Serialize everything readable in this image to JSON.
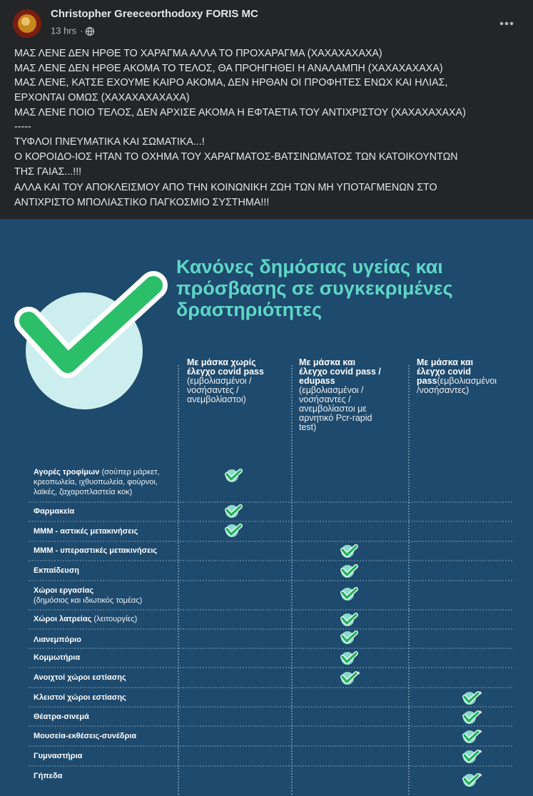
{
  "post": {
    "author": "Christopher Greeceorthodoxy FORIS MC",
    "time": "13 hrs",
    "text": [
      "ΜΑΣ ΛΕΝΕ ΔΕΝ ΗΡΘΕ ΤΟ ΧΑΡΑΓΜΑ ΑΛΛΑ ΤΟ ΠΡΟΧΑΡΑΓΜΑ (ΧΑΧΑΧΑΧΑΧΑ)",
      "ΜΑΣ ΛΕΝΕ ΔΕΝ ΗΡΘΕ ΑΚΟΜΑ ΤΟ ΤΕΛΟΣ, ΘΑ ΠΡΟΗΓΗΘΕΙ Η ΑΝΑΛΑΜΠΗ (ΧΑΧΑΧΑΧΑΧΑ)",
      "ΜΑΣ ΛΕΝΕ, ΚΑΤΣΕ ΕΧΟΥΜΕ ΚΑΙΡΟ ΑΚΟΜΑ, ΔΕΝ ΗΡΘΑΝ ΟΙ ΠΡΟΦΗΤΕΣ ΕΝΩΧ ΚΑΙ ΗΛΙΑΣ,",
      "ΕΡΧΟΝΤΑΙ ΟΜΩΣ (ΧΑΧΑΧΑΧΑΧΑΧΑ)",
      "ΜΑΣ ΛΕΝΕ ΠΟΙΟ ΤΕΛΟΣ, ΔΕΝ ΑΡΧΙΣΕ ΑΚΟΜΑ Η ΕΦΤΑΕΤΙΑ ΤΟΥ ΑΝΤΙΧΡΙΣΤΟΥ (ΧΑΧΑΧΑΧΑΧΑ)",
      "-----",
      "ΤΥΦΛΟΙ ΠΝΕΥΜΑΤΙΚΑ ΚΑΙ ΣΩΜΑΤΙΚΑ...!",
      "Ο ΚΟΡΟΙΔΟ-ΙΟΣ ΗΤΑΝ ΤΟ ΟΧΗΜΑ ΤΟΥ ΧΑΡΑΓΜΑΤΟΣ-ΒΑΤΣΙΝΩΜΑΤΟΣ ΤΩΝ ΚΑΤΟΙΚΟΥΝΤΩΝ",
      "ΤΗΣ ΓΑΙΑΣ...!!!",
      "ΑΛΛΑ ΚΑΙ ΤΟΥ ΑΠΟΚΛΕΙΣΜΟΥ ΑΠΟ ΤΗΝ ΚΟΙΝΩΝΙΚΗ ΖΩΗ ΤΩΝ ΜΗ ΥΠΟΤΑΓΜΕΝΩΝ ΣΤΟ",
      "ΑΝΤΙΧΡΙΣΤΟ ΜΠΟΛΙΑΣΤΙΚΟ ΠΑΓΚΟΣΜΙΟ ΣΥΣΤΗΜΑ!!!"
    ]
  },
  "infographic": {
    "title": [
      "Κανόνες δημόσιας υγείας και",
      "πρόσβασης σε συγκεκριμένες",
      "δραστηριότητες"
    ],
    "columns": [
      {
        "lines": [
          {
            "bold": "Με μάσκα χωρίς"
          },
          {
            "bold": "έλεγχο covid pass"
          },
          {
            "regular": "(εμβολιασμένοι /"
          },
          {
            "regular": "νοσήσαντες /"
          },
          {
            "regular": "ανεμβολίαστοι)"
          }
        ]
      },
      {
        "lines": [
          {
            "bold": "Με μάσκα και"
          },
          {
            "bold": "έλεγχο covid pass /"
          },
          {
            "bold": "edupass"
          },
          {
            "regular": "(εμβολιασμένοι /"
          },
          {
            "regular": "νοσήσαντες /"
          },
          {
            "regular": "ανεμβολίαστοι με"
          },
          {
            "regular": "αρνητικό Pcr-rapid"
          },
          {
            "regular": "test)"
          }
        ]
      },
      {
        "lines": [
          {
            "bold": "Με μάσκα και"
          },
          {
            "bold": "έλεγχο covid"
          },
          {
            "bold": "pass",
            "regular": "(εμβολιασμένοι"
          },
          {
            "regular": "/νοσήσαντες)"
          }
        ]
      }
    ],
    "rows": [
      {
        "lines": [
          {
            "bold": "Αγορές τροφίμων",
            "regular": " (σούπερ μάρκετ,"
          },
          {
            "regular": "κρεοπωλεία, ιχθυοπωλεία, φούρνοι,"
          },
          {
            "regular": "λαϊκές, ζαχαροπλαστεία κοκ)"
          }
        ],
        "column": 0
      },
      {
        "lines": [
          {
            "bold": "Φαρμακεία"
          }
        ],
        "column": 0
      },
      {
        "lines": [
          {
            "bold": "ΜΜΜ - αστικές μετακινήσεις"
          }
        ],
        "column": 0
      },
      {
        "lines": [
          {
            "bold": "ΜΜΜ - υπεραστικές μετακινήσεις"
          }
        ],
        "column": 1
      },
      {
        "lines": [
          {
            "bold": "Εκπαίδευση"
          }
        ],
        "column": 1
      },
      {
        "lines": [
          {
            "bold": "Χώροι εργασίας"
          },
          {
            "regular": "(δημόσιος και ιδιωτικός τομέας)"
          }
        ],
        "column": 1
      },
      {
        "lines": [
          {
            "bold": "Χώροι λατρείας",
            "regular": " (λειτουργίες)"
          }
        ],
        "column": 1
      },
      {
        "lines": [
          {
            "bold": "Λιανεμπόριο"
          }
        ],
        "column": 1
      },
      {
        "lines": [
          {
            "bold": "Κομμωτήρια"
          }
        ],
        "column": 1
      },
      {
        "lines": [
          {
            "bold": "Ανοιχτοί χώροι εστίασης"
          }
        ],
        "column": 1,
        "asterisk": "*"
      },
      {
        "lines": [
          {
            "bold": "Κλειστοί χώροι εστίασης"
          }
        ],
        "column": 2,
        "asterisk": "*"
      },
      {
        "lines": [
          {
            "bold": "Θέατρα-σινεμά"
          }
        ],
        "column": 2,
        "asterisk": "*"
      },
      {
        "lines": [
          {
            "bold": "Μουσεία-εκθέσεις-συνέδρια"
          }
        ],
        "column": 2,
        "asterisk": "*"
      },
      {
        "lines": [
          {
            "bold": "Γυμναστήρια"
          }
        ],
        "column": 2,
        "asterisk": "*"
      },
      {
        "lines": [
          {
            "bold": "Γήπεδα"
          }
        ],
        "column": 2,
        "asterisk": "*"
      }
    ]
  }
}
